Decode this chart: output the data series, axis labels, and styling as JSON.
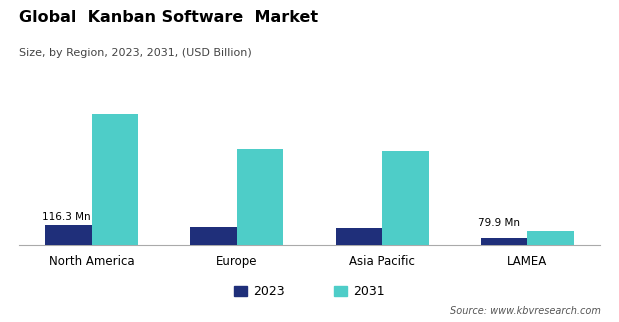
{
  "title": "Global  Kanban Software  Market",
  "subtitle": "Size, by Region, 2023, 2031, (USD Billion)",
  "categories": [
    "North America",
    "Europe",
    "Asia Pacific",
    "LAMEA"
  ],
  "values_2023": [
    0.1163,
    0.105,
    0.098,
    0.038
  ],
  "values_2031": [
    0.78,
    0.57,
    0.56,
    0.0799
  ],
  "color_2023": "#1f2f7a",
  "color_2031": "#4ecdc8",
  "bar_width": 0.32,
  "annotation_left_text": "116.3 Mn",
  "annotation_right_text": "79.9 Mn",
  "legend_2023": "2023",
  "legend_2031": "2031",
  "source_text": "Source: www.kbvresearch.com",
  "background_color": "#ffffff",
  "ylim": [
    0,
    0.92
  ]
}
